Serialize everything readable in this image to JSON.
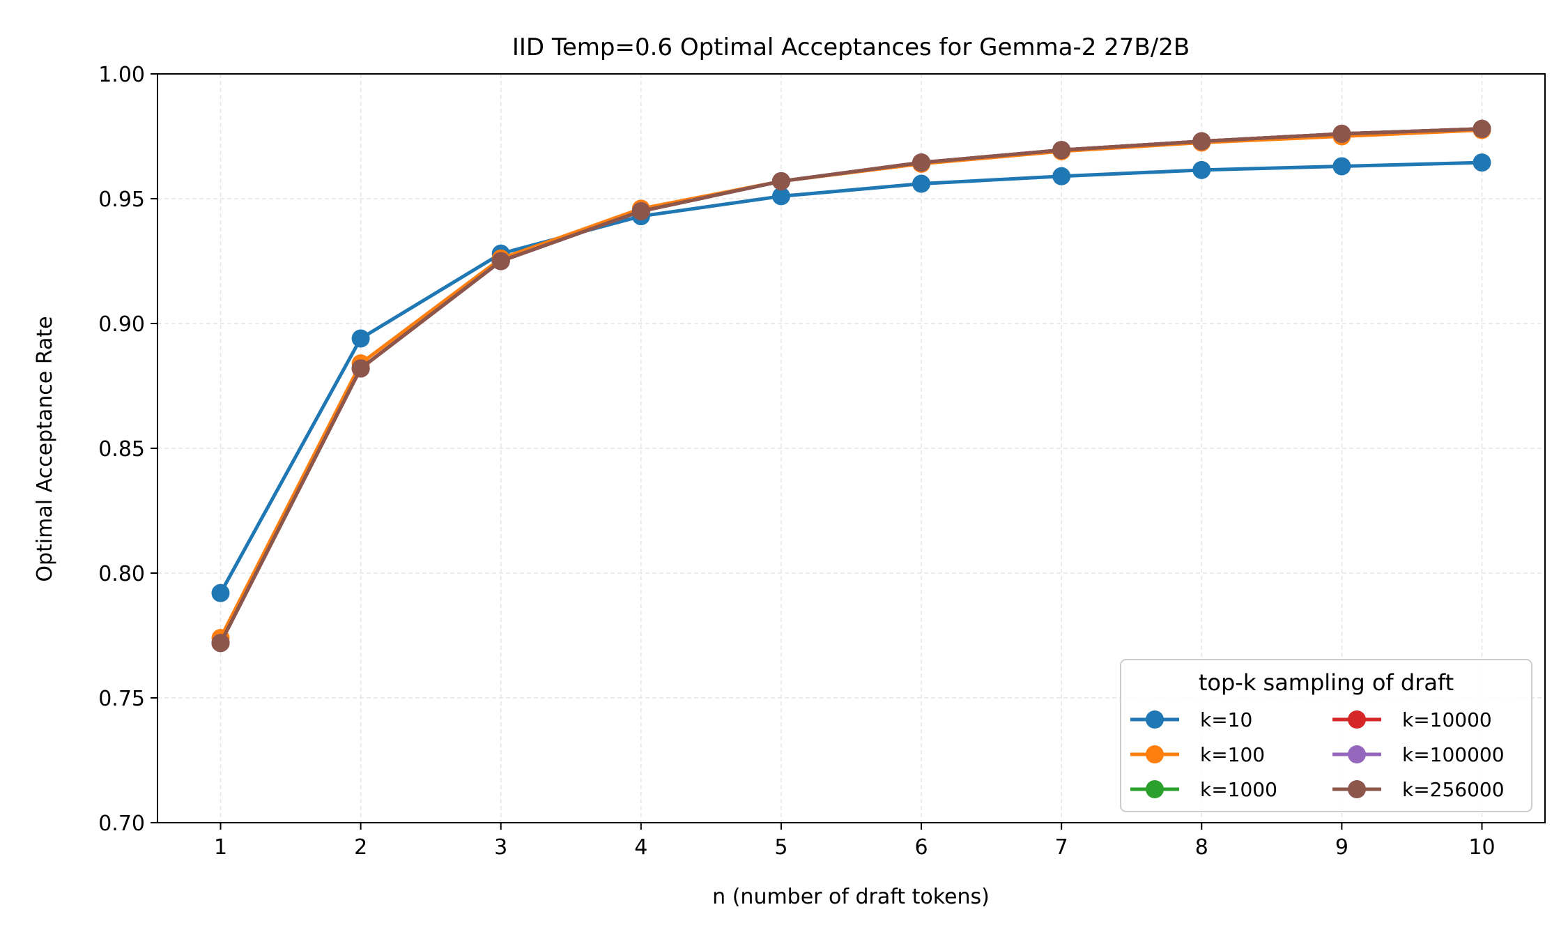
{
  "chart_data": {
    "type": "line",
    "title": "IID Temp=0.6 Optimal Acceptances for Gemma-2 27B/2B",
    "xlabel": "n (number of draft tokens)",
    "ylabel": "Optimal Acceptance Rate",
    "x": [
      1,
      2,
      3,
      4,
      5,
      6,
      7,
      8,
      9,
      10
    ],
    "xlim": [
      0.55,
      10.45
    ],
    "ylim": [
      0.7,
      1.0
    ],
    "x_ticks": [
      "1",
      "2",
      "3",
      "4",
      "5",
      "6",
      "7",
      "8",
      "9",
      "10"
    ],
    "y_ticks": [
      "0.70",
      "0.75",
      "0.80",
      "0.85",
      "0.90",
      "0.95",
      "1.00"
    ],
    "grid": true,
    "legend": {
      "title": "top-k sampling of draft",
      "placement": "bottom-right",
      "columns": 2
    },
    "series": [
      {
        "name": "k=10",
        "color": "#1f77b4",
        "values": [
          0.792,
          0.894,
          0.928,
          0.943,
          0.951,
          0.956,
          0.959,
          0.9615,
          0.963,
          0.9645
        ]
      },
      {
        "name": "k=100",
        "color": "#ff7f0e",
        "values": [
          0.774,
          0.884,
          0.926,
          0.946,
          0.957,
          0.964,
          0.969,
          0.9725,
          0.975,
          0.9775
        ]
      },
      {
        "name": "k=1000",
        "color": "#2ca02c",
        "values": [
          0.772,
          0.882,
          0.925,
          0.945,
          0.957,
          0.9645,
          0.9695,
          0.973,
          0.976,
          0.978
        ]
      },
      {
        "name": "k=10000",
        "color": "#d62728",
        "values": [
          0.772,
          0.882,
          0.925,
          0.945,
          0.957,
          0.9645,
          0.9695,
          0.973,
          0.976,
          0.978
        ]
      },
      {
        "name": "k=100000",
        "color": "#9467bd",
        "values": [
          0.772,
          0.882,
          0.925,
          0.945,
          0.957,
          0.9645,
          0.9695,
          0.973,
          0.976,
          0.978
        ]
      },
      {
        "name": "k=256000",
        "color": "#8c564b",
        "values": [
          0.772,
          0.882,
          0.925,
          0.945,
          0.957,
          0.9645,
          0.9695,
          0.973,
          0.976,
          0.978
        ]
      }
    ]
  }
}
